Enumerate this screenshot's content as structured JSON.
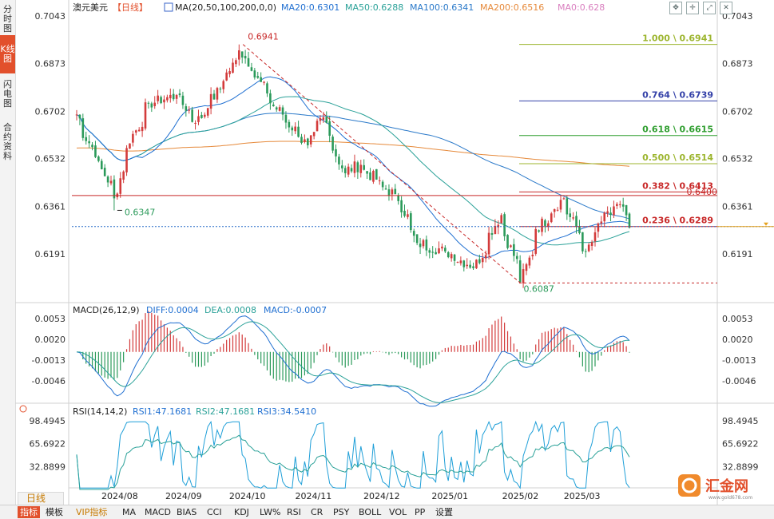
{
  "side_tabs": [
    {
      "label": "分时图",
      "active": false
    },
    {
      "label": "K线图",
      "active": true
    },
    {
      "label": "闪电图",
      "active": false
    },
    {
      "label": "合约资料",
      "active": false
    }
  ],
  "header": {
    "symbol": "澳元美元",
    "period_tag": "【日线】",
    "ma_params": "MA(20,50,100,200,0,0)",
    "ma20": "MA20:0.6301",
    "ma50": "MA50:0.6288",
    "ma100": "MA100:0.6341",
    "ma200": "MA200:0.6516",
    "ma0": "MA0:0.628"
  },
  "colors": {
    "up": "#d33b3b",
    "down": "#2b9a5a",
    "ma20": "#1f6fd1",
    "ma50": "#2aa198",
    "ma100": "#2a79c9",
    "ma200": "#e6893a",
    "ma0": "#d97fbf",
    "fib": "#b3c85a",
    "accent": "#e2502c"
  },
  "price_axis": {
    "ticks": [
      "0.7043",
      "0.6873",
      "0.6702",
      "0.6532",
      "0.6361",
      "0.6191"
    ]
  },
  "annotations": {
    "high": "0.6941",
    "low_left": "0.6347",
    "low_right": "0.6087",
    "current_line": "0.6400"
  },
  "fib_levels": [
    {
      "label": "1.000 \\ 0.6941",
      "value": 0.6941,
      "color": "#9cb52e"
    },
    {
      "label": "0.764 \\ 0.6739",
      "value": 0.6739,
      "color": "#3340a8"
    },
    {
      "label": "0.618 \\ 0.6615",
      "value": 0.6615,
      "color": "#2f9e2f"
    },
    {
      "label": "0.500 \\ 0.6514",
      "value": 0.6514,
      "color": "#9cb52e"
    },
    {
      "label": "0.382 \\ 0.6413",
      "value": 0.6413,
      "color": "#c82828"
    },
    {
      "label": "0.236 \\ 0.6289",
      "value": 0.6289,
      "color": "#c82828"
    }
  ],
  "macd": {
    "title": "MACD(26,12,9)",
    "diff": "DIFF:0.0004",
    "dea": "DEA:0.0008",
    "macd": "MACD:-0.0007",
    "ticks": [
      "0.0053",
      "0.0020",
      "-0.0013",
      "-0.0046"
    ]
  },
  "rsi": {
    "title": "RSI(14,14,2)",
    "rsi1": "RSI1:47.1681",
    "rsi2": "RSI2:47.1681",
    "rsi3": "RSI3:34.5410",
    "ticks": [
      "98.4945",
      "65.6922",
      "32.8899"
    ]
  },
  "time_axis": [
    "2024/08",
    "2024/09",
    "2024/10",
    "2024/11",
    "2024/12",
    "2025/01",
    "2025/02",
    "2025/03"
  ],
  "period_button": "日线",
  "bottom_tabs": [
    "指标",
    "模板",
    "VIP指标",
    "MA",
    "MACD",
    "BIAS",
    "CCI",
    "KDJ",
    "LW%",
    "RSI",
    "CR",
    "PSY",
    "BOLL",
    "VOL",
    "PP",
    "设置"
  ],
  "top_icons": [
    "zoom-fit-icon",
    "crosshair-icon",
    "expand-icon",
    "close-icon"
  ],
  "logo": {
    "text": "汇金网",
    "url": "www.gold678.com"
  },
  "chart_data": {
    "type": "candlestick",
    "title": "澳元美元【日线】",
    "x_range": [
      "2024/07",
      "2025/03"
    ],
    "ylim": [
      0.6087,
      0.7043
    ],
    "anchors": [
      {
        "date": "2024/07/18",
        "close": 0.669
      },
      {
        "date": "2024/08/05",
        "close": 0.639,
        "low": 0.6347
      },
      {
        "date": "2024/08/10",
        "close": 0.657
      },
      {
        "date": "2024/08/20",
        "close": 0.673
      },
      {
        "date": "2024/09/01",
        "close": 0.676
      },
      {
        "date": "2024/09/10",
        "close": 0.666
      },
      {
        "date": "2024/09/20",
        "close": 0.678
      },
      {
        "date": "2024/09/30",
        "close": 0.692,
        "high": 0.6941
      },
      {
        "date": "2024/10/15",
        "close": 0.672
      },
      {
        "date": "2024/10/30",
        "close": 0.658
      },
      {
        "date": "2024/11/06",
        "close": 0.668
      },
      {
        "date": "2024/11/15",
        "close": 0.648
      },
      {
        "date": "2024/11/22",
        "close": 0.651
      },
      {
        "date": "2024/12/03",
        "close": 0.643
      },
      {
        "date": "2024/12/10",
        "close": 0.638
      },
      {
        "date": "2024/12/18",
        "close": 0.623
      },
      {
        "date": "2024/12/31",
        "close": 0.62
      },
      {
        "date": "2025/01/13",
        "close": 0.614
      },
      {
        "date": "2025/01/24",
        "close": 0.633
      },
      {
        "date": "2025/02/03",
        "close": 0.609,
        "low": 0.6087
      },
      {
        "date": "2025/02/10",
        "close": 0.628
      },
      {
        "date": "2025/02/21",
        "close": 0.639
      },
      {
        "date": "2025/03/04",
        "close": 0.62
      },
      {
        "date": "2025/03/10",
        "close": 0.63
      },
      {
        "date": "2025/03/18",
        "close": 0.637
      },
      {
        "date": "2025/03/24",
        "close": 0.6285
      }
    ]
  }
}
